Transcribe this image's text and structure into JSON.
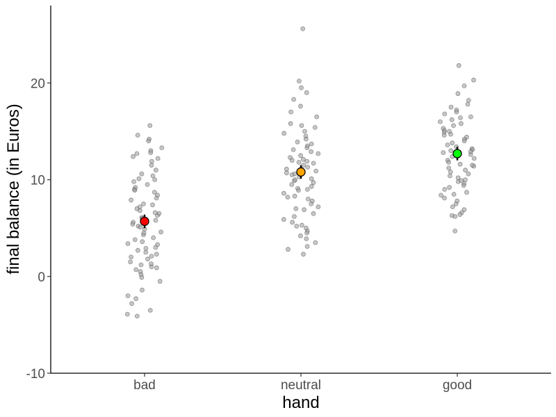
{
  "chart_data": {
    "type": "scatter",
    "subtype": "jittered strip plot with group means and error bars",
    "xlabel": "hand",
    "ylabel": "final balance (in Euros)",
    "categories": [
      "bad",
      "neutral",
      "good"
    ],
    "ylim": [
      -10,
      28
    ],
    "yticks": [
      -10,
      0,
      10,
      20
    ],
    "grid": false,
    "legend": "none",
    "points": {
      "bad": [
        15.6,
        14.6,
        14.2,
        13.3,
        13.0,
        12.8,
        12.4,
        12.2,
        11.9,
        11.0,
        10.4,
        10.1,
        10.0,
        9.8,
        9.5,
        9.2,
        9.0,
        8.7,
        8.4,
        8.1,
        7.9,
        7.5,
        7.4,
        7.2,
        7.0,
        6.8,
        6.5,
        6.3,
        6.1,
        6.0,
        5.8,
        5.6,
        5.4,
        5.2,
        5.1,
        4.9,
        4.6,
        4.3,
        4.0,
        3.8,
        3.6,
        3.3,
        3.0,
        2.7,
        2.5,
        2.3,
        2.1,
        2.0,
        1.8,
        1.5,
        1.3,
        1.2,
        1.0,
        0.7,
        0.5,
        0.2,
        -0.1,
        -0.5,
        -1.4,
        -2.0,
        -2.3,
        -2.8,
        -3.5,
        -3.9,
        -4.1,
        12.7,
        10.6,
        8.9,
        6.6,
        4.5,
        2.9,
        0.9,
        14.0,
        11.5,
        3.4
      ],
      "neutral": [
        25.6,
        20.2,
        19.5,
        19.0,
        18.3,
        17.6,
        16.5,
        15.8,
        15.6,
        15.4,
        15.0,
        14.8,
        14.5,
        14.2,
        13.9,
        13.7,
        13.5,
        13.1,
        12.9,
        12.7,
        12.5,
        12.3,
        12.1,
        11.9,
        11.7,
        11.5,
        11.3,
        11.1,
        10.9,
        10.7,
        10.5,
        10.3,
        10.1,
        9.9,
        9.7,
        9.5,
        9.3,
        9.1,
        8.9,
        8.6,
        8.3,
        8.0,
        7.8,
        7.5,
        7.2,
        6.9,
        6.5,
        6.2,
        5.9,
        5.6,
        5.3,
        5.0,
        4.7,
        4.5,
        4.2,
        3.9,
        3.5,
        3.1,
        2.8,
        2.3,
        17.0,
        13.3,
        11.8,
        10.6,
        9.0,
        7.0,
        5.2,
        12.0,
        10.0,
        8.2
      ],
      "good": [
        21.8,
        20.3,
        19.7,
        18.9,
        18.2,
        17.8,
        17.5,
        17.2,
        17.0,
        16.8,
        16.5,
        16.2,
        16.0,
        15.8,
        15.6,
        15.3,
        15.1,
        14.9,
        14.6,
        14.4,
        14.2,
        14.0,
        13.8,
        13.6,
        13.4,
        13.2,
        13.0,
        12.8,
        12.6,
        12.4,
        12.2,
        12.0,
        11.8,
        11.6,
        11.4,
        11.2,
        11.0,
        10.8,
        10.6,
        10.4,
        10.2,
        10.0,
        9.8,
        9.6,
        9.4,
        9.2,
        9.0,
        8.7,
        8.4,
        8.1,
        7.8,
        7.5,
        7.2,
        6.9,
        6.6,
        6.4,
        6.3,
        6.2,
        4.7,
        16.4,
        14.7,
        13.1,
        11.5,
        9.9,
        8.5,
        12.9,
        15.0
      ],
      "color": "#999999",
      "stroke": "#5a5a5a",
      "opacity": 0.55
    },
    "means": [
      {
        "category": "bad",
        "value": 5.7,
        "ci_low": 5.0,
        "ci_high": 6.4,
        "color": "#ff0000"
      },
      {
        "category": "neutral",
        "value": 10.8,
        "ci_low": 10.1,
        "ci_high": 11.5,
        "color": "#ffa500"
      },
      {
        "category": "good",
        "value": 12.7,
        "ci_low": 12.0,
        "ci_high": 13.4,
        "color": "#00ff00"
      }
    ]
  }
}
